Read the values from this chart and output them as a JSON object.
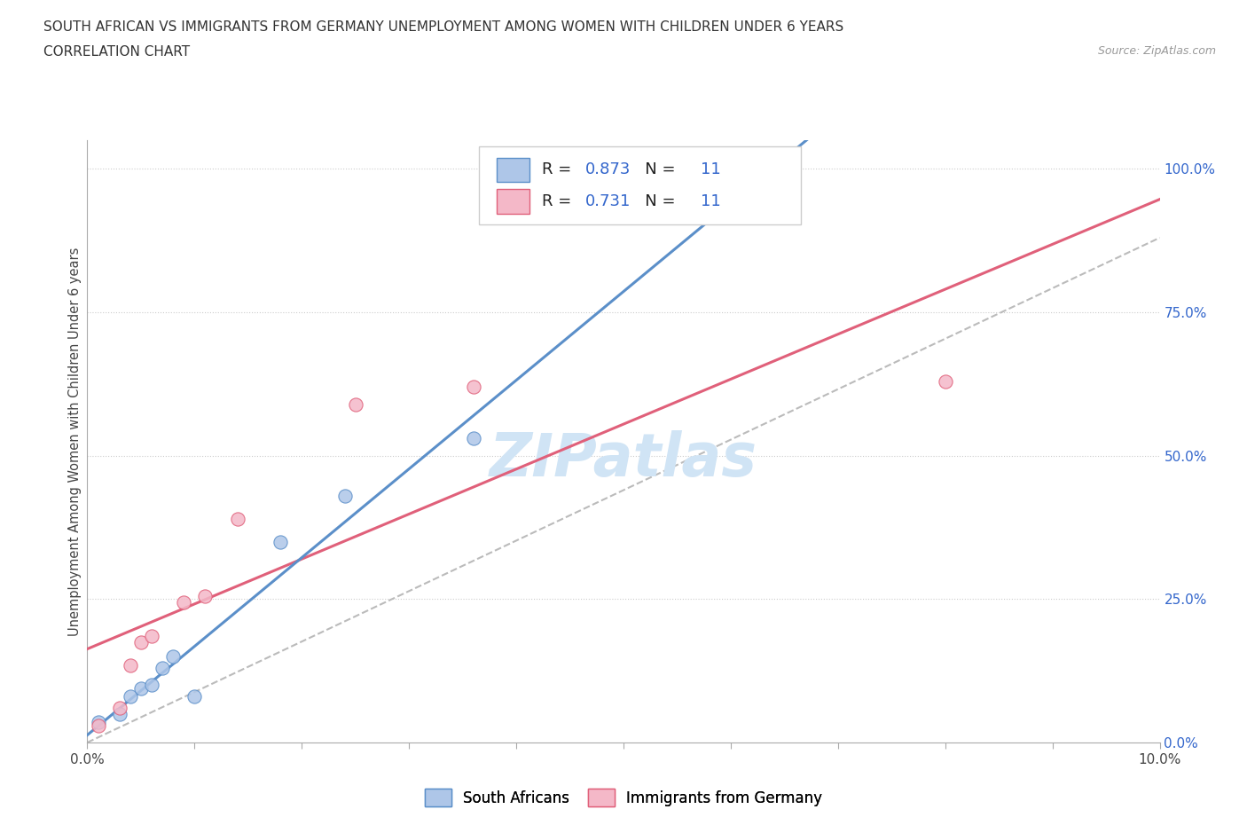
{
  "title_line1": "SOUTH AFRICAN VS IMMIGRANTS FROM GERMANY UNEMPLOYMENT AMONG WOMEN WITH CHILDREN UNDER 6 YEARS",
  "title_line2": "CORRELATION CHART",
  "source": "Source: ZipAtlas.com",
  "ylabel": "Unemployment Among Women with Children Under 6 years",
  "xlim": [
    0.0,
    0.1
  ],
  "ylim": [
    0.0,
    1.05
  ],
  "ytick_labels": [
    "0.0%",
    "25.0%",
    "50.0%",
    "75.0%",
    "100.0%"
  ],
  "ytick_values": [
    0.0,
    0.25,
    0.5,
    0.75,
    1.0
  ],
  "grid_color": "#cccccc",
  "background_color": "#ffffff",
  "south_africans_fill": "#aec6e8",
  "south_africans_edge": "#5b8fc9",
  "immigrants_fill": "#f4b8c8",
  "immigrants_edge": "#e0607a",
  "trend_sa_color": "#5b8fc9",
  "trend_imm_color": "#e0607a",
  "trend_dashed_color": "#bbbbbb",
  "R_sa": "0.873",
  "N_sa": "11",
  "R_imm": "0.731",
  "N_imm": "11",
  "R_color": "#3366cc",
  "label_color": "#222222",
  "source_color": "#999999",
  "ytick_color": "#3366cc",
  "south_africans_x": [
    0.001,
    0.003,
    0.004,
    0.005,
    0.006,
    0.007,
    0.008,
    0.01,
    0.018,
    0.024,
    0.036
  ],
  "south_africans_y": [
    0.035,
    0.05,
    0.08,
    0.095,
    0.1,
    0.13,
    0.15,
    0.08,
    0.35,
    0.43,
    0.53
  ],
  "immigrants_x": [
    0.001,
    0.003,
    0.004,
    0.005,
    0.006,
    0.009,
    0.011,
    0.014,
    0.025,
    0.036,
    0.08
  ],
  "immigrants_y": [
    0.03,
    0.06,
    0.135,
    0.175,
    0.185,
    0.245,
    0.255,
    0.39,
    0.59,
    0.62,
    0.63
  ],
  "watermark_text": "ZIPatlas",
  "watermark_color": "#d0e4f5",
  "legend_south_label": "South Africans",
  "legend_imm_label": "Immigrants from Germany"
}
